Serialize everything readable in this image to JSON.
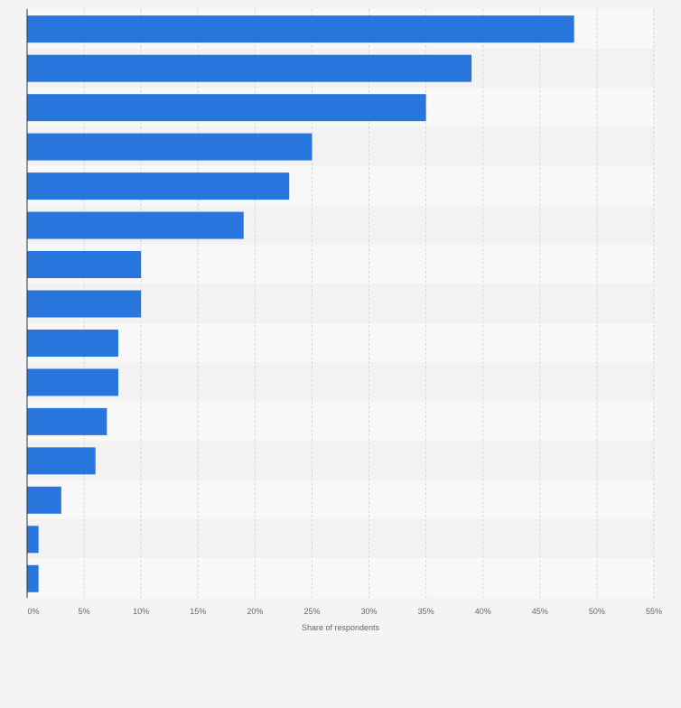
{
  "colors": {
    "bar": "#2876dd",
    "band_light": "#f8f8f8",
    "band_dark": "#f2f2f2",
    "grid": "#d9d9d9",
    "axis": "#333333",
    "tick_text": "#666666",
    "background": "#f4f4f4"
  },
  "chart_data": {
    "type": "bar",
    "orientation": "horizontal",
    "categories": [
      "",
      "",
      "",
      "",
      "",
      "",
      "",
      "",
      "",
      "",
      "",
      "",
      "",
      "",
      ""
    ],
    "values": [
      48,
      39,
      35,
      25,
      23,
      19,
      10,
      10,
      8,
      8,
      7,
      6,
      3,
      1,
      1
    ],
    "xlabel": "Share of respondents",
    "ylabel": "",
    "xlim": [
      0,
      55
    ],
    "x_ticks": [
      "0%",
      "5%",
      "10%",
      "15%",
      "20%",
      "25%",
      "30%",
      "35%",
      "40%",
      "45%",
      "50%",
      "55%"
    ],
    "grid": true,
    "legend": "none"
  }
}
